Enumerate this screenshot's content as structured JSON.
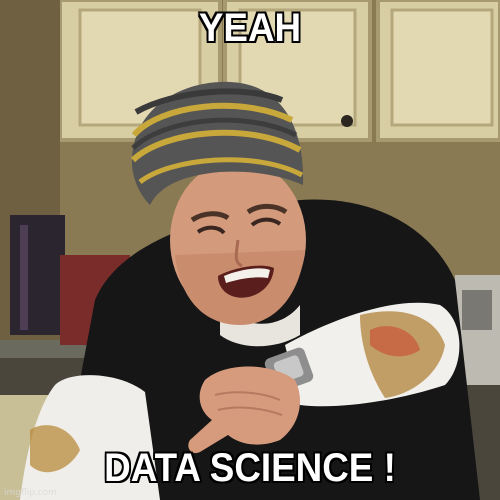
{
  "meme": {
    "top_text": "YEAH",
    "bottom_text": "DATA SCIENCE !",
    "watermark": "imgflip.com"
  },
  "colors": {
    "cabinet": "#d9cfa6",
    "wall": "#8c7c55",
    "beanie_dark": "#5a5a5a",
    "beanie_stripe": "#c8a83a",
    "jacket": "#151515",
    "sleeve": "#f2f0ec",
    "skin": "#d79a7c"
  }
}
